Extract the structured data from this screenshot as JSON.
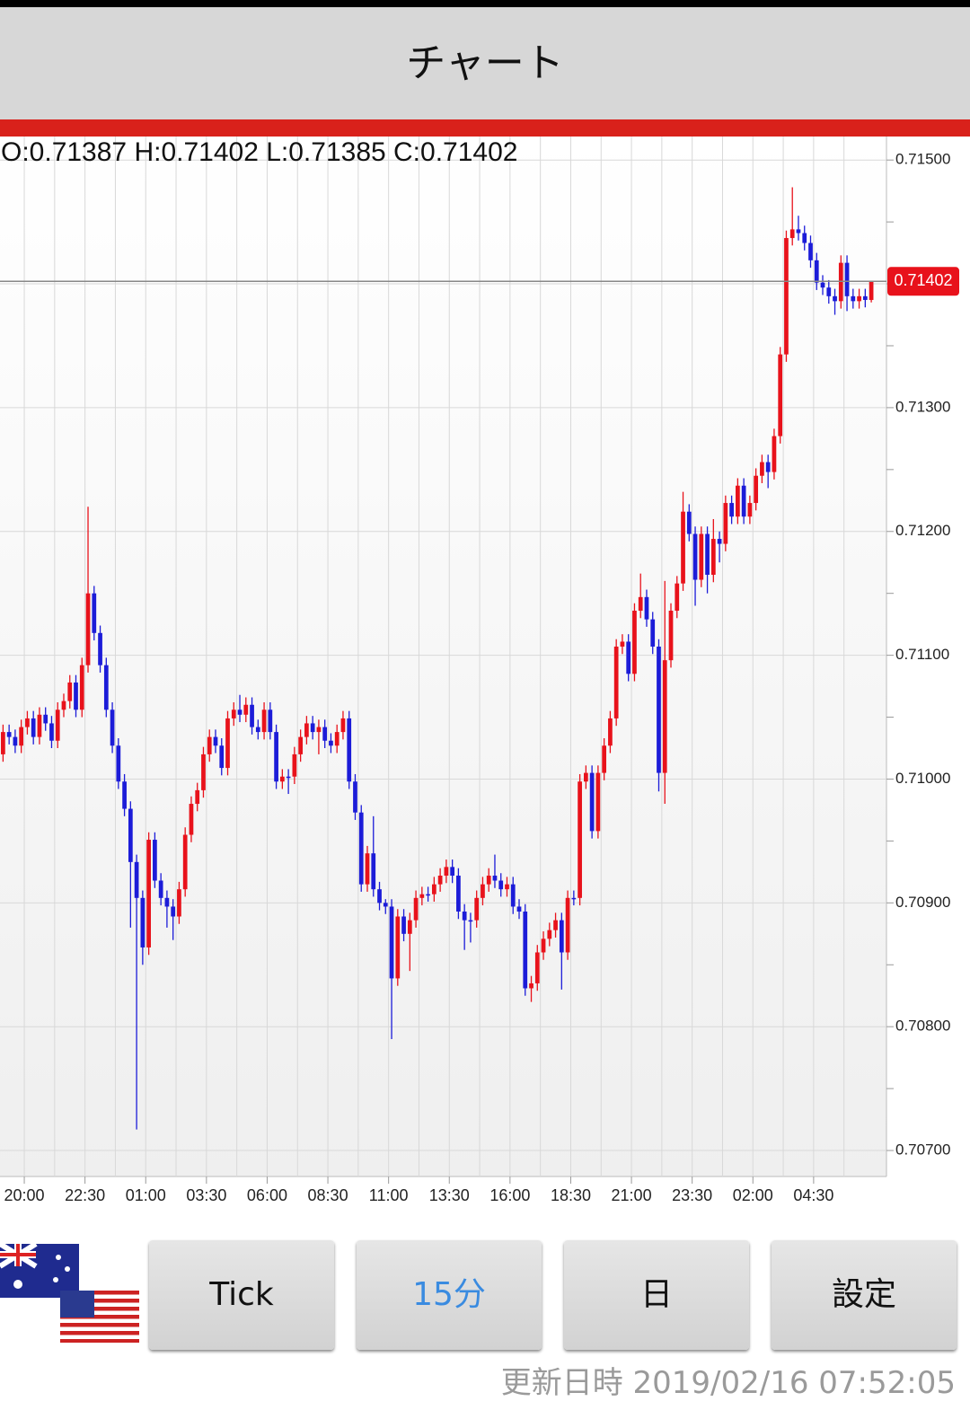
{
  "header": {
    "title": "チャート"
  },
  "chart_data": {
    "type": "candlestick",
    "ohlc_text": "O:0.71387 H:0.71402 L:0.71385 C:0.71402",
    "current_price": 0.71402,
    "up_color": "#e8121b",
    "down_color": "#1c1cd8",
    "xlim": [
      0,
      146
    ],
    "xticks": [
      {
        "value": 4,
        "label": "20:00"
      },
      {
        "value": 14,
        "label": "22:30"
      },
      {
        "value": 24,
        "label": "01:00"
      },
      {
        "value": 34,
        "label": "03:30"
      },
      {
        "value": 44,
        "label": "06:00"
      },
      {
        "value": 54,
        "label": "08:30"
      },
      {
        "value": 64,
        "label": "11:00"
      },
      {
        "value": 74,
        "label": "13:30"
      },
      {
        "value": 84,
        "label": "16:00"
      },
      {
        "value": 94,
        "label": "18:30"
      },
      {
        "value": 104,
        "label": "21:00"
      },
      {
        "value": 114,
        "label": "23:30"
      },
      {
        "value": 124,
        "label": "02:00"
      },
      {
        "value": 134,
        "label": "04:30"
      }
    ],
    "ylim": [
      0.70679,
      0.71519
    ],
    "yticks": [
      {
        "value": 0.707,
        "label": "0.70700"
      },
      {
        "value": 0.708,
        "label": "0.70800"
      },
      {
        "value": 0.709,
        "label": "0.70900"
      },
      {
        "value": 0.71,
        "label": "0.71000"
      },
      {
        "value": 0.711,
        "label": "0.71100"
      },
      {
        "value": 0.712,
        "label": "0.71200"
      },
      {
        "value": 0.713,
        "label": "0.71300"
      },
      {
        "value": 0.714,
        "label": "0.71400"
      },
      {
        "value": 0.715,
        "label": "0.71500"
      }
    ],
    "grid": true,
    "open": [
      0.7102,
      0.71038,
      0.71034,
      0.71027,
      0.71042,
      0.71049,
      0.71034,
      0.71052,
      0.71045,
      0.71031,
      0.71056,
      0.71063,
      0.71078,
      0.71056,
      0.71092,
      0.7115,
      0.71118,
      0.71092,
      0.71056,
      0.71027,
      0.70998,
      0.70976,
      0.70933,
      0.70904,
      0.70864,
      0.70951,
      0.70918,
      0.70904,
      0.70897,
      0.70889,
      0.70911,
      0.70955,
      0.7098,
      0.70991,
      0.7102,
      0.71034,
      0.71027,
      0.71009,
      0.71049,
      0.71056,
      0.71052,
      0.7106,
      0.71042,
      0.71038,
      0.71056,
      0.71038,
      0.70998,
      0.71002,
      0.71002,
      0.7102,
      0.71034,
      0.71045,
      0.71038,
      0.71042,
      0.71031,
      0.71027,
      0.71038,
      0.71049,
      0.70998,
      0.70973,
      0.70915,
      0.7094,
      0.70911,
      0.709,
      0.70897,
      0.70839,
      0.70889,
      0.70875,
      0.70886,
      0.70904,
      0.70907,
      0.70907,
      0.70915,
      0.70922,
      0.70929,
      0.70922,
      0.70893,
      0.70886,
      0.70886,
      0.70904,
      0.70915,
      0.70922,
      0.70918,
      0.70911,
      0.70915,
      0.70897,
      0.70893,
      0.70831,
      0.70835,
      0.7086,
      0.70871,
      0.70878,
      0.70886,
      0.7086,
      0.70904,
      0.70904,
      0.70998,
      0.71005,
      0.70958,
      0.71005,
      0.71027,
      0.71049,
      0.71107,
      0.71111,
      0.71085,
      0.71136,
      0.71147,
      0.71129,
      0.71107,
      0.71005,
      0.71096,
      0.71136,
      0.71158,
      0.71216,
      0.71198,
      0.71161,
      0.71198,
      0.71165,
      0.71194,
      0.7119,
      0.71223,
      0.71212,
      0.71237,
      0.71212,
      0.71223,
      0.71245,
      0.71256,
      0.71248,
      0.71277,
      0.71343,
      0.71437,
      0.71444,
      0.71441,
      0.71433,
      0.71419,
      0.71401,
      0.71397,
      0.7139,
      0.71386,
      0.71417,
      0.7139,
      0.71386,
      0.7139,
      0.71387
    ],
    "high": [
      0.71044,
      0.71044,
      0.7104,
      0.71048,
      0.71055,
      0.71055,
      0.71058,
      0.71058,
      0.71051,
      0.71062,
      0.71069,
      0.71084,
      0.71084,
      0.71098,
      0.7122,
      0.71156,
      0.71124,
      0.71098,
      0.71062,
      0.71033,
      0.71004,
      0.70982,
      0.70939,
      0.7091,
      0.70957,
      0.70957,
      0.70924,
      0.7091,
      0.70903,
      0.70917,
      0.70961,
      0.70986,
      0.70997,
      0.71026,
      0.7104,
      0.7104,
      0.71033,
      0.71055,
      0.71062,
      0.71068,
      0.71066,
      0.71066,
      0.71048,
      0.71062,
      0.71062,
      0.71044,
      0.71008,
      0.71008,
      0.71026,
      0.7104,
      0.71051,
      0.71051,
      0.71048,
      0.71048,
      0.71037,
      0.71044,
      0.71055,
      0.71055,
      0.71004,
      0.70979,
      0.70946,
      0.7097,
      0.70917,
      0.70903,
      0.70903,
      0.70895,
      0.70895,
      0.70892,
      0.7091,
      0.70913,
      0.70913,
      0.70921,
      0.70928,
      0.70935,
      0.70935,
      0.70928,
      0.70899,
      0.70892,
      0.7091,
      0.70921,
      0.70928,
      0.70939,
      0.70924,
      0.70921,
      0.70921,
      0.70903,
      0.70899,
      0.70841,
      0.70866,
      0.70877,
      0.70884,
      0.70892,
      0.70892,
      0.7091,
      0.7091,
      0.71004,
      0.71011,
      0.71011,
      0.71011,
      0.71033,
      0.71055,
      0.71113,
      0.71117,
      0.71117,
      0.71142,
      0.71166,
      0.71153,
      0.71135,
      0.71113,
      0.7116,
      0.71142,
      0.71164,
      0.71232,
      0.71222,
      0.71204,
      0.71204,
      0.71204,
      0.7121,
      0.712,
      0.71229,
      0.71229,
      0.71243,
      0.71243,
      0.71229,
      0.71251,
      0.71262,
      0.71262,
      0.71283,
      0.71349,
      0.71443,
      0.71478,
      0.71455,
      0.71447,
      0.71439,
      0.71425,
      0.71407,
      0.71403,
      0.71396,
      0.71423,
      0.71423,
      0.71396,
      0.71396,
      0.71396,
      0.71402
    ],
    "low": [
      0.71014,
      0.71028,
      0.71021,
      0.71021,
      0.71036,
      0.71028,
      0.71028,
      0.71039,
      0.71025,
      0.71025,
      0.7105,
      0.71057,
      0.7105,
      0.7105,
      0.71086,
      0.71112,
      0.71086,
      0.7105,
      0.71021,
      0.70992,
      0.7097,
      0.7088,
      0.70717,
      0.7085,
      0.70858,
      0.70912,
      0.70898,
      0.7088,
      0.7087,
      0.70883,
      0.70905,
      0.70949,
      0.70974,
      0.70985,
      0.71014,
      0.71021,
      0.71003,
      0.71003,
      0.71043,
      0.71046,
      0.71046,
      0.71036,
      0.71032,
      0.71032,
      0.71032,
      0.70992,
      0.70992,
      0.70988,
      0.70996,
      0.71014,
      0.71028,
      0.71032,
      0.7102,
      0.71025,
      0.71021,
      0.71021,
      0.71032,
      0.70992,
      0.70967,
      0.70909,
      0.70909,
      0.70905,
      0.70894,
      0.70891,
      0.7079,
      0.70833,
      0.70869,
      0.70845,
      0.7088,
      0.70898,
      0.70901,
      0.70901,
      0.70909,
      0.70916,
      0.70916,
      0.70887,
      0.70862,
      0.70868,
      0.7088,
      0.70898,
      0.70909,
      0.70912,
      0.70905,
      0.70905,
      0.70891,
      0.70887,
      0.70825,
      0.7082,
      0.70829,
      0.70854,
      0.70865,
      0.70872,
      0.7083,
      0.70854,
      0.70898,
      0.70898,
      0.70992,
      0.70952,
      0.70952,
      0.70999,
      0.71021,
      0.71043,
      0.71101,
      0.71079,
      0.71079,
      0.7113,
      0.71123,
      0.71101,
      0.7099,
      0.7098,
      0.7109,
      0.7113,
      0.71152,
      0.71192,
      0.7114,
      0.71155,
      0.7115,
      0.71159,
      0.71175,
      0.71184,
      0.71206,
      0.71206,
      0.71206,
      0.71206,
      0.71217,
      0.71239,
      0.71235,
      0.71242,
      0.71271,
      0.71337,
      0.71431,
      0.71435,
      0.71427,
      0.71413,
      0.71395,
      0.71391,
      0.71384,
      0.71375,
      0.7138,
      0.71378,
      0.7138,
      0.7138,
      0.71381,
      0.71385
    ],
    "close": [
      0.71038,
      0.71034,
      0.71027,
      0.71042,
      0.71049,
      0.71034,
      0.71052,
      0.71045,
      0.71031,
      0.71056,
      0.71063,
      0.71078,
      0.71056,
      0.71092,
      0.7115,
      0.71118,
      0.71092,
      0.71056,
      0.71027,
      0.70998,
      0.70976,
      0.70933,
      0.70904,
      0.70864,
      0.70951,
      0.70918,
      0.70904,
      0.70897,
      0.70889,
      0.70911,
      0.70955,
      0.7098,
      0.70991,
      0.7102,
      0.71034,
      0.71027,
      0.71009,
      0.71049,
      0.71056,
      0.71052,
      0.7106,
      0.71042,
      0.71038,
      0.71056,
      0.71038,
      0.70998,
      0.71002,
      0.71002,
      0.7102,
      0.71034,
      0.71045,
      0.71038,
      0.71042,
      0.71031,
      0.71027,
      0.71038,
      0.71049,
      0.70998,
      0.70973,
      0.70915,
      0.7094,
      0.70911,
      0.709,
      0.70897,
      0.70839,
      0.70889,
      0.70875,
      0.70886,
      0.70904,
      0.70907,
      0.70907,
      0.70915,
      0.70922,
      0.70929,
      0.70922,
      0.70893,
      0.70886,
      0.70886,
      0.70904,
      0.70915,
      0.70922,
      0.70918,
      0.70911,
      0.70915,
      0.70897,
      0.70893,
      0.70831,
      0.70835,
      0.7086,
      0.70871,
      0.70878,
      0.70886,
      0.7086,
      0.70904,
      0.70904,
      0.70998,
      0.71005,
      0.70958,
      0.71005,
      0.71027,
      0.71049,
      0.71107,
      0.71111,
      0.71085,
      0.71136,
      0.71147,
      0.71129,
      0.71107,
      0.71005,
      0.71096,
      0.71136,
      0.71158,
      0.71216,
      0.71198,
      0.71161,
      0.71198,
      0.71165,
      0.71194,
      0.7119,
      0.71223,
      0.71212,
      0.71237,
      0.71212,
      0.71223,
      0.71245,
      0.71256,
      0.71248,
      0.71277,
      0.71343,
      0.71437,
      0.71444,
      0.71441,
      0.71433,
      0.71419,
      0.71401,
      0.71397,
      0.7139,
      0.71386,
      0.71417,
      0.7139,
      0.71386,
      0.7139,
      0.71387,
      0.71402
    ]
  },
  "buttons": [
    "Tick",
    "15分",
    "日",
    "設定"
  ],
  "footer": "更新日時 2019/02/16 07:52:05"
}
